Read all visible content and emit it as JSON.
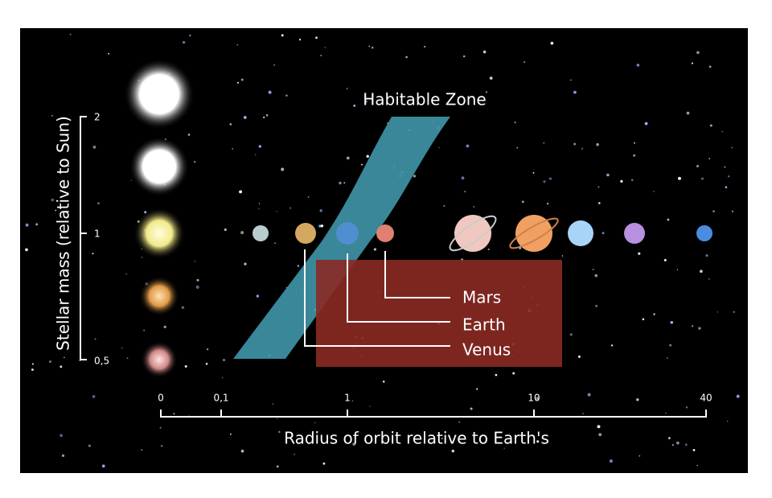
{
  "diagram": {
    "zone_label": "Habitable Zone",
    "y_axis": {
      "label": "Stellar mass (relative to Sun)",
      "ticks": [
        "2",
        "1",
        "0,5"
      ]
    },
    "x_axis": {
      "label": "Radius of orbit relative to Earth's",
      "ticks": [
        "0",
        "0,1",
        "1",
        "10",
        "40"
      ]
    },
    "planet_labels": [
      "Mars",
      "Earth",
      "Venus"
    ]
  }
}
